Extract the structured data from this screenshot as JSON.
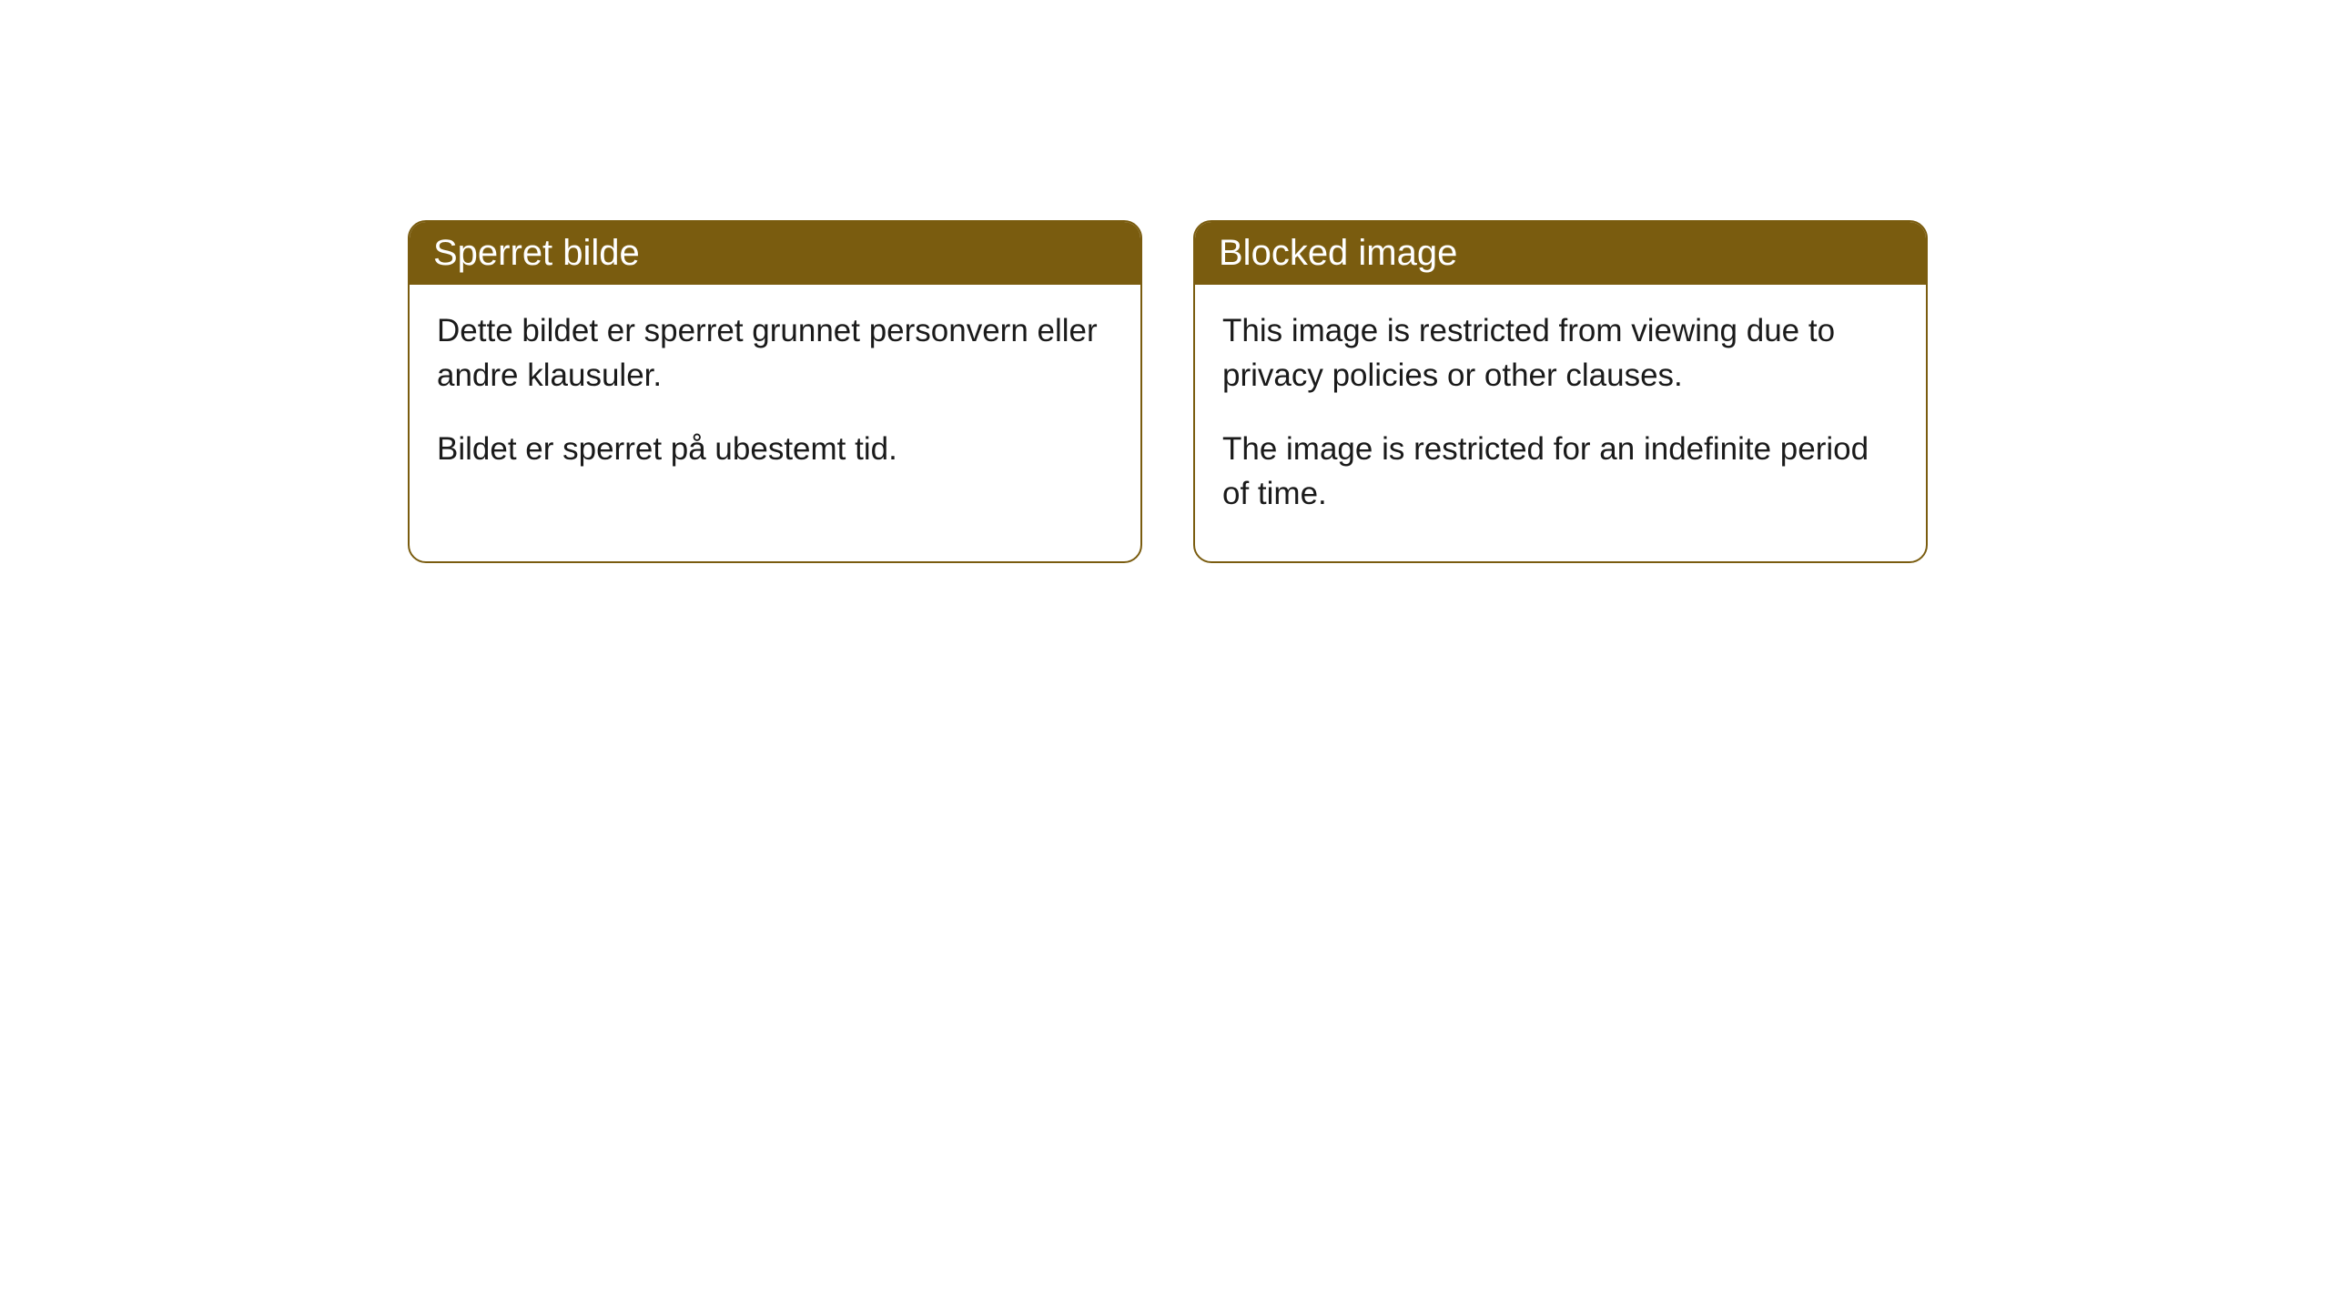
{
  "cards": [
    {
      "title": "Sperret bilde",
      "paragraph1": "Dette bildet er sperret grunnet personvern eller andre klausuler.",
      "paragraph2": "Bildet er sperret på ubestemt tid."
    },
    {
      "title": "Blocked image",
      "paragraph1": "This image is restricted from viewing due to privacy policies or other clauses.",
      "paragraph2": "The image is restricted for an indefinite period of time."
    }
  ],
  "style": {
    "header_background": "#7a5c0f",
    "header_text": "#ffffff",
    "border_color": "#7a5c0f",
    "body_background": "#ffffff",
    "body_text": "#1a1a1a",
    "border_radius": 20,
    "title_fontsize": 40,
    "body_fontsize": 35
  }
}
